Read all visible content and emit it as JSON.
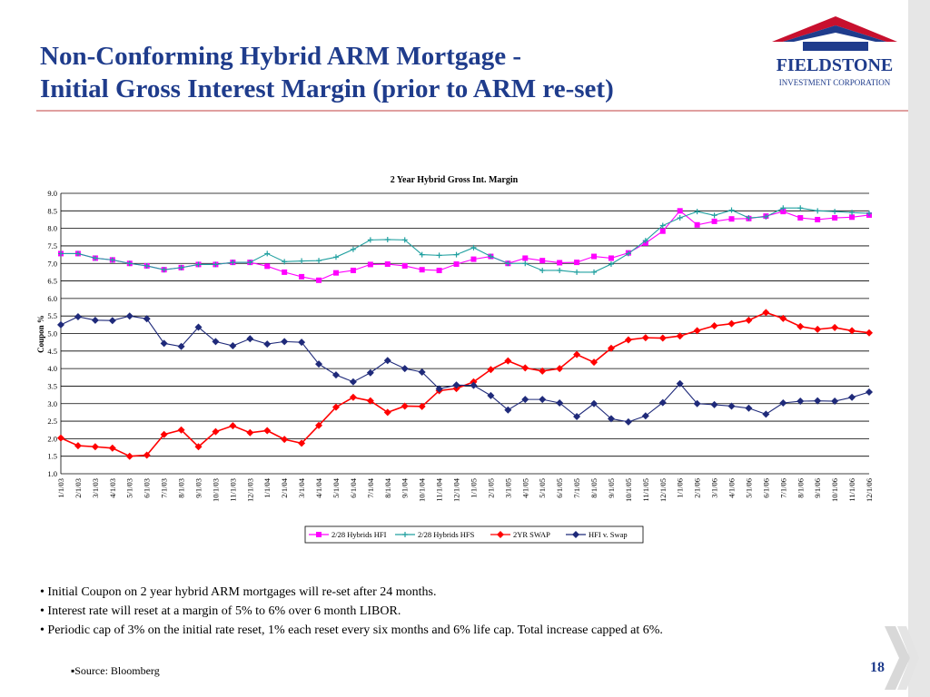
{
  "slide": {
    "title_line1": "Non-Conforming Hybrid ARM Mortgage -",
    "title_line2": "Initial Gross Interest Margin (prior to ARM re-set)",
    "logo_name": "FIELDSTONE",
    "logo_sub": "INVESTMENT CORPORATION",
    "bullets": [
      "• Initial Coupon on 2 year hybrid ARM mortgages will re-set after 24 months.",
      "• Interest rate will reset at a margin of  5% to 6% over 6 month LIBOR.",
      "• Periodic cap of 3% on the initial rate reset, 1% each reset every six months and 6% life cap. Total increase capped at 6%."
    ],
    "source": "▪Source: Bloomberg",
    "page_number": "18"
  },
  "chart_data": {
    "type": "line",
    "title": "2 Year Hybrid Gross Int. Margin",
    "ylabel": "Coupon %",
    "xlabel": "",
    "ylim": [
      1.0,
      9.0
    ],
    "yticks": [
      "1.0",
      "1.5",
      "2.0",
      "2.5",
      "3.0",
      "3.5",
      "4.0",
      "4.5",
      "5.0",
      "5.5",
      "6.0",
      "6.5",
      "7.0",
      "7.5",
      "8.0",
      "8.5",
      "9.0"
    ],
    "grid": true,
    "legend_position": "bottom",
    "categories": [
      "1/1/03",
      "2/1/03",
      "3/1/03",
      "4/1/03",
      "5/1/03",
      "6/1/03",
      "7/1/03",
      "8/1/03",
      "9/1/03",
      "10/1/03",
      "11/1/03",
      "12/1/03",
      "1/1/04",
      "2/1/04",
      "3/1/04",
      "4/1/04",
      "5/1/04",
      "6/1/04",
      "7/1/04",
      "8/1/04",
      "9/1/04",
      "10/1/04",
      "11/1/04",
      "12/1/04",
      "1/1/05",
      "2/1/05",
      "3/1/05",
      "4/1/05",
      "5/1/05",
      "6/1/05",
      "7/1/05",
      "8/1/05",
      "9/1/05",
      "10/1/05",
      "11/1/05",
      "12/1/05",
      "1/1/06",
      "2/1/06",
      "3/1/06",
      "4/1/06",
      "5/1/06",
      "6/1/06",
      "7/1/06",
      "8/1/06",
      "9/1/06",
      "10/1/06",
      "11/1/06",
      "12/1/06"
    ],
    "series": [
      {
        "name": "2/28 Hybrids HFI",
        "color": "#ff00ff",
        "marker": "square",
        "values": [
          7.28,
          7.28,
          7.15,
          7.1,
          7.0,
          6.93,
          6.82,
          6.88,
          6.97,
          6.97,
          7.03,
          7.03,
          6.92,
          6.75,
          6.62,
          6.52,
          6.73,
          6.8,
          6.97,
          6.98,
          6.93,
          6.82,
          6.8,
          6.98,
          7.12,
          7.2,
          7.0,
          7.15,
          7.08,
          7.02,
          7.03,
          7.2,
          7.15,
          7.3,
          7.58,
          7.92,
          8.5,
          8.1,
          8.2,
          8.27,
          8.28,
          8.35,
          8.48,
          8.3,
          8.25,
          8.3,
          8.32,
          8.38
        ]
      },
      {
        "name": "2/28 Hybrids HFS",
        "color": "#20a0a0",
        "marker": "plus",
        "values": [
          7.28,
          7.28,
          7.15,
          7.1,
          7.0,
          6.93,
          6.82,
          6.88,
          6.97,
          6.97,
          7.03,
          7.03,
          7.28,
          7.05,
          7.07,
          7.08,
          7.18,
          7.4,
          7.67,
          7.68,
          7.67,
          7.25,
          7.23,
          7.25,
          7.45,
          7.2,
          7.0,
          7.0,
          6.8,
          6.8,
          6.75,
          6.75,
          6.98,
          7.28,
          7.65,
          8.08,
          8.3,
          8.48,
          8.37,
          8.52,
          8.3,
          8.33,
          8.58,
          8.58,
          8.5,
          8.48,
          8.45,
          8.43
        ]
      },
      {
        "name": "2YR SWAP",
        "color": "#ff0000",
        "marker": "diamond",
        "values": [
          2.02,
          1.8,
          1.77,
          1.73,
          1.5,
          1.53,
          2.12,
          2.25,
          1.77,
          2.2,
          2.37,
          2.17,
          2.23,
          1.98,
          1.87,
          2.38,
          2.9,
          3.18,
          3.08,
          2.75,
          2.93,
          2.92,
          3.37,
          3.43,
          3.62,
          3.97,
          4.22,
          4.02,
          3.93,
          4.0,
          4.4,
          4.18,
          4.58,
          4.82,
          4.88,
          4.87,
          4.93,
          5.08,
          5.22,
          5.28,
          5.38,
          5.6,
          5.43,
          5.2,
          5.12,
          5.17,
          5.08,
          5.02
        ]
      },
      {
        "name": "HFI v. Swap",
        "color": "#1f2a7a",
        "marker": "diamond",
        "values": [
          5.25,
          5.48,
          5.38,
          5.37,
          5.5,
          5.42,
          4.72,
          4.63,
          5.18,
          4.77,
          4.65,
          4.85,
          4.7,
          4.77,
          4.75,
          4.13,
          3.82,
          3.62,
          3.88,
          4.23,
          4.0,
          3.9,
          3.42,
          3.53,
          3.52,
          3.23,
          2.82,
          3.12,
          3.12,
          3.02,
          2.63,
          3.0,
          2.57,
          2.48,
          2.65,
          3.03,
          3.57,
          3.0,
          2.97,
          2.93,
          2.87,
          2.7,
          3.02,
          3.07,
          3.08,
          3.07,
          3.18,
          3.33
        ]
      }
    ]
  }
}
